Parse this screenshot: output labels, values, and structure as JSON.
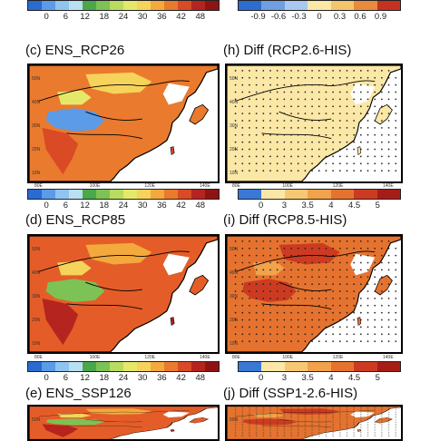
{
  "panels": {
    "c": {
      "title": "(c) ENS_RCP26"
    },
    "d": {
      "title": "(d) ENS_RCP85"
    },
    "e": {
      "title": "(e) ENS_SSP126"
    },
    "h": {
      "title": "(h) Diff (RCP2.6-HIS)"
    },
    "i": {
      "title": "(i) Diff (RCP8.5-HIS)"
    },
    "j": {
      "title": "(j) Diff (SSP1-2.6-HIS)"
    }
  },
  "axis_ticks": {
    "lon": [
      "80E",
      "100E",
      "120E",
      "140E"
    ],
    "lat": [
      "50N",
      "40N",
      "30N",
      "20N",
      "10N"
    ]
  },
  "colorbars": {
    "abs": {
      "labels": [
        "0",
        "6",
        "12",
        "18",
        "24",
        "30",
        "36",
        "42",
        "48"
      ],
      "colors": [
        "#2a6bd1",
        "#5b9be8",
        "#8fc4f0",
        "#b9dff0",
        "#4aa84a",
        "#7cc254",
        "#b7dc5f",
        "#e6e86a",
        "#f6d35a",
        "#f3a93c",
        "#ea7a2e",
        "#d94a25",
        "#b5241e",
        "#8e1414"
      ]
    },
    "diff_top": {
      "labels": [
        "-0.9",
        "-0.6",
        "-0.3",
        "0",
        "0.3",
        "0.6",
        "0.9"
      ],
      "colors": [
        "#2e6dd0",
        "#6f9fe2",
        "#a9c8ef",
        "#fbe7a6",
        "#f5c46b",
        "#ea8a3c",
        "#c8301f"
      ]
    },
    "diff": {
      "labels": [
        "0",
        "3",
        "3.5",
        "4",
        "4.5",
        "5"
      ],
      "colors": [
        "#3a78d6",
        "#fbe7a6",
        "#f7c873",
        "#f1a24a",
        "#e5732f",
        "#cc3b21",
        "#a51d17"
      ]
    }
  }
}
